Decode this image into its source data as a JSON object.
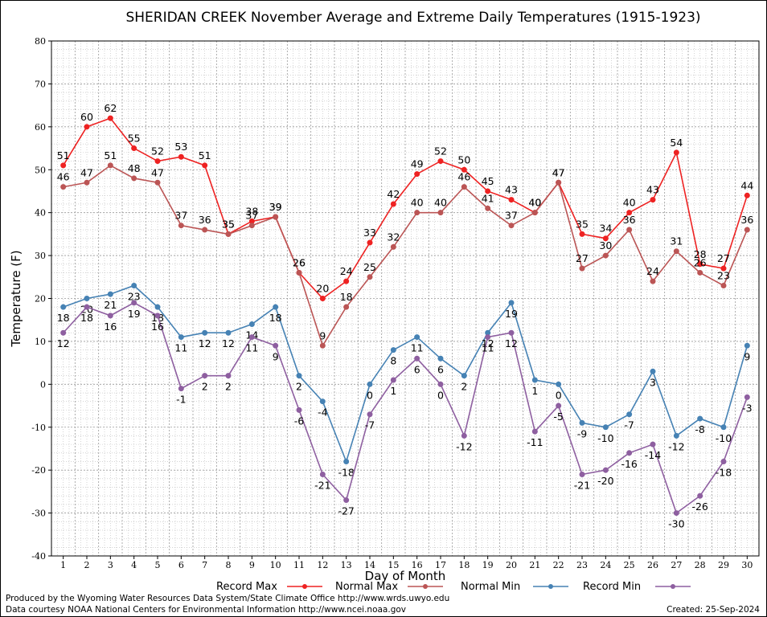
{
  "chart_data": {
    "type": "line",
    "title": "SHERIDAN CREEK November Average and Extreme Daily Temperatures (1915-1923)",
    "xlabel": "Day of Month",
    "ylabel": "Temperature (F)",
    "ylim": [
      -40,
      80
    ],
    "yticks": [
      -40,
      -30,
      -20,
      -10,
      0,
      10,
      20,
      30,
      40,
      50,
      60,
      70,
      80
    ],
    "x": [
      1,
      2,
      3,
      4,
      5,
      6,
      7,
      8,
      9,
      10,
      11,
      12,
      13,
      14,
      15,
      16,
      17,
      18,
      19,
      20,
      21,
      22,
      23,
      24,
      25,
      26,
      27,
      28,
      29,
      30
    ],
    "grid": true,
    "legend_position": "bottom",
    "series": [
      {
        "name": "Record Max",
        "color": "#ee2222",
        "values": [
          51,
          60,
          62,
          55,
          52,
          53,
          51,
          35,
          38,
          39,
          26,
          20,
          24,
          33,
          42,
          49,
          52,
          50,
          45,
          43,
          40,
          47,
          35,
          34,
          40,
          43,
          54,
          28,
          27,
          44
        ]
      },
      {
        "name": "Normal Max",
        "color": "#bb5555",
        "values": [
          46,
          47,
          51,
          48,
          47,
          37,
          36,
          35,
          37,
          39,
          26,
          9,
          18,
          25,
          32,
          40,
          40,
          46,
          41,
          37,
          40,
          47,
          27,
          30,
          36,
          24,
          31,
          26,
          23,
          36
        ]
      },
      {
        "name": "Normal Min",
        "color": "#4682b4",
        "values": [
          18,
          20,
          21,
          23,
          18,
          11,
          12,
          12,
          14,
          18,
          2,
          -4,
          -18,
          0,
          8,
          11,
          6,
          2,
          12,
          19,
          1,
          0,
          -9,
          -10,
          -7,
          3,
          -12,
          -8,
          -10,
          9
        ]
      },
      {
        "name": "Record Min",
        "color": "#8e5fa0",
        "values": [
          12,
          18,
          16,
          19,
          16,
          -1,
          2,
          2,
          11,
          9,
          -6,
          -21,
          -27,
          -7,
          1,
          6,
          0,
          -12,
          11,
          12,
          -11,
          -5,
          -21,
          -20,
          -16,
          -14,
          -30,
          -26,
          -18,
          -3
        ]
      }
    ]
  },
  "footer": {
    "line1": "Produced by the Wyoming Water Resources Data System/State Climate Office http://www.wrds.uwyo.edu",
    "line2": "Data courtesy NOAA National Centers for Environmental Information http://www.ncei.noaa.gov",
    "created": "Created:  25-Sep-2024"
  }
}
